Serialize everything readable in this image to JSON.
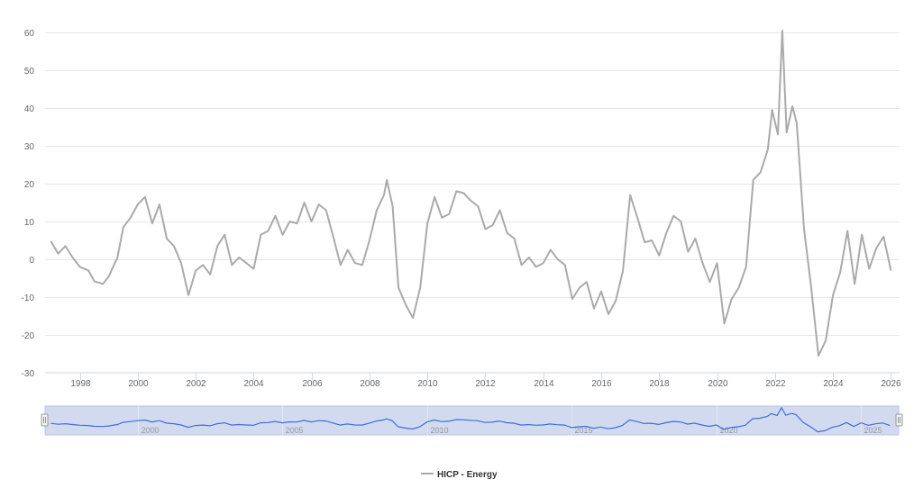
{
  "chart_data": {
    "type": "line",
    "series": [
      {
        "name": "HICP - Energy",
        "color": "#aaaaaa",
        "points": [
          [
            1997.0,
            4.8
          ],
          [
            1997.25,
            1.5
          ],
          [
            1997.5,
            3.5
          ],
          [
            1997.75,
            0.5
          ],
          [
            1998.0,
            -2.0
          ],
          [
            1998.3,
            -3.0
          ],
          [
            1998.5,
            -5.8
          ],
          [
            1998.8,
            -6.5
          ],
          [
            1999.0,
            -4.5
          ],
          [
            1999.3,
            0.5
          ],
          [
            1999.5,
            8.5
          ],
          [
            1999.75,
            11.0
          ],
          [
            2000.0,
            14.5
          ],
          [
            2000.25,
            16.5
          ],
          [
            2000.5,
            9.5
          ],
          [
            2000.75,
            14.5
          ],
          [
            2001.0,
            5.5
          ],
          [
            2001.25,
            3.5
          ],
          [
            2001.5,
            -1.0
          ],
          [
            2001.75,
            -9.5
          ],
          [
            2002.0,
            -3.0
          ],
          [
            2002.25,
            -1.5
          ],
          [
            2002.5,
            -4.0
          ],
          [
            2002.75,
            3.5
          ],
          [
            2003.0,
            6.5
          ],
          [
            2003.25,
            -1.5
          ],
          [
            2003.5,
            0.5
          ],
          [
            2003.75,
            -1.0
          ],
          [
            2004.0,
            -2.5
          ],
          [
            2004.25,
            6.5
          ],
          [
            2004.5,
            7.5
          ],
          [
            2004.75,
            11.5
          ],
          [
            2005.0,
            6.5
          ],
          [
            2005.25,
            10.0
          ],
          [
            2005.5,
            9.5
          ],
          [
            2005.75,
            15.0
          ],
          [
            2006.0,
            10.0
          ],
          [
            2006.25,
            14.5
          ],
          [
            2006.5,
            13.0
          ],
          [
            2006.75,
            6.0
          ],
          [
            2007.0,
            -1.5
          ],
          [
            2007.25,
            2.5
          ],
          [
            2007.5,
            -1.0
          ],
          [
            2007.75,
            -1.5
          ],
          [
            2008.0,
            5.0
          ],
          [
            2008.25,
            13.0
          ],
          [
            2008.5,
            17.0
          ],
          [
            2008.6,
            21.0
          ],
          [
            2008.8,
            14.0
          ],
          [
            2009.0,
            -7.5
          ],
          [
            2009.25,
            -12.0
          ],
          [
            2009.5,
            -15.5
          ],
          [
            2009.75,
            -7.5
          ],
          [
            2010.0,
            9.5
          ],
          [
            2010.25,
            16.5
          ],
          [
            2010.5,
            11.0
          ],
          [
            2010.75,
            12.0
          ],
          [
            2011.0,
            18.0
          ],
          [
            2011.25,
            17.5
          ],
          [
            2011.5,
            15.5
          ],
          [
            2011.75,
            14.0
          ],
          [
            2012.0,
            8.0
          ],
          [
            2012.25,
            9.0
          ],
          [
            2012.5,
            13.0
          ],
          [
            2012.75,
            7.0
          ],
          [
            2013.0,
            5.5
          ],
          [
            2013.25,
            -1.5
          ],
          [
            2013.5,
            0.5
          ],
          [
            2013.75,
            -2.0
          ],
          [
            2014.0,
            -1.0
          ],
          [
            2014.25,
            2.5
          ],
          [
            2014.5,
            0.0
          ],
          [
            2014.75,
            -1.5
          ],
          [
            2015.0,
            -10.5
          ],
          [
            2015.25,
            -7.5
          ],
          [
            2015.5,
            -6.0
          ],
          [
            2015.75,
            -13.0
          ],
          [
            2016.0,
            -8.5
          ],
          [
            2016.25,
            -14.5
          ],
          [
            2016.5,
            -11.0
          ],
          [
            2016.75,
            -3.0
          ],
          [
            2017.0,
            17.0
          ],
          [
            2017.25,
            11.0
          ],
          [
            2017.5,
            4.5
          ],
          [
            2017.75,
            5.0
          ],
          [
            2018.0,
            1.0
          ],
          [
            2018.25,
            7.0
          ],
          [
            2018.5,
            11.5
          ],
          [
            2018.75,
            10.0
          ],
          [
            2019.0,
            2.0
          ],
          [
            2019.25,
            5.5
          ],
          [
            2019.5,
            -1.0
          ],
          [
            2019.75,
            -6.0
          ],
          [
            2020.0,
            -1.0
          ],
          [
            2020.25,
            -17.0
          ],
          [
            2020.5,
            -10.5
          ],
          [
            2020.75,
            -7.5
          ],
          [
            2021.0,
            -2.0
          ],
          [
            2021.25,
            21.0
          ],
          [
            2021.5,
            23.0
          ],
          [
            2021.75,
            29.0
          ],
          [
            2021.9,
            39.5
          ],
          [
            2022.1,
            33.0
          ],
          [
            2022.25,
            60.5
          ],
          [
            2022.4,
            33.5
          ],
          [
            2022.6,
            40.5
          ],
          [
            2022.75,
            36.0
          ],
          [
            2023.0,
            8.0
          ],
          [
            2023.25,
            -7.5
          ],
          [
            2023.5,
            -25.5
          ],
          [
            2023.75,
            -21.5
          ],
          [
            2024.0,
            -9.5
          ],
          [
            2024.25,
            -3.5
          ],
          [
            2024.5,
            7.5
          ],
          [
            2024.75,
            -6.5
          ],
          [
            2025.0,
            6.5
          ],
          [
            2025.25,
            -2.5
          ],
          [
            2025.5,
            3.0
          ],
          [
            2025.75,
            6.0
          ],
          [
            2026.0,
            -3.0
          ]
        ]
      }
    ],
    "ylim": [
      -30,
      60
    ],
    "ytick_labels": [
      "60",
      "50",
      "40",
      "30",
      "20",
      "10",
      "0",
      "-10",
      "-20",
      "-30"
    ],
    "ytick_values": [
      60,
      50,
      40,
      30,
      20,
      10,
      0,
      -10,
      -20,
      -30
    ],
    "xlim": [
      1996.8,
      2026.3
    ],
    "xtick_labels": [
      "1998",
      "2000",
      "2002",
      "2004",
      "2006",
      "2008",
      "2010",
      "2012",
      "2014",
      "2016",
      "2018",
      "2020",
      "2022",
      "2024",
      "2026"
    ],
    "xtick_values": [
      1998,
      2000,
      2002,
      2004,
      2006,
      2008,
      2010,
      2012,
      2014,
      2016,
      2018,
      2020,
      2022,
      2024,
      2026
    ],
    "grid": "horizontal",
    "legend": {
      "position": "bottom-center",
      "label": "HICP - Energy"
    },
    "navigator": {
      "labels": [
        "2000",
        "2005",
        "2010",
        "2015",
        "2020",
        "2025"
      ],
      "label_values": [
        2000,
        2005,
        2010,
        2015,
        2020,
        2025
      ],
      "line_color": "#3d6fd8",
      "mask_color": "#d2daf0"
    }
  }
}
